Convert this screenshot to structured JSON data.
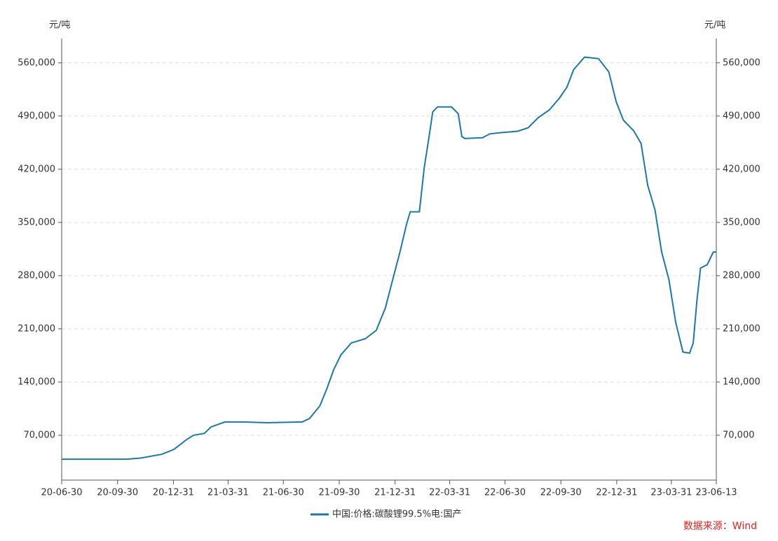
{
  "chart_data": {
    "type": "line",
    "y_unit_label": "元/吨",
    "y2_unit_label": "元/吨",
    "source": "数据来源：Wind",
    "x": [
      "20-06-30",
      "20-10-15",
      "20-11-07",
      "20-12-12",
      "21-01-01",
      "21-01-22",
      "21-02-02",
      "21-02-20",
      "21-03-03",
      "21-03-26",
      "21-04-24",
      "21-06-03",
      "21-07-31",
      "21-08-12",
      "21-08-29",
      "21-09-10",
      "21-09-21",
      "21-10-03",
      "21-10-20",
      "21-11-12",
      "21-11-30",
      "21-12-15",
      "21-12-27",
      "22-01-08",
      "22-01-19",
      "22-01-25",
      "22-02-09",
      "22-02-17",
      "22-02-25",
      "22-03-03",
      "22-03-11",
      "22-04-03",
      "22-04-14",
      "22-04-20",
      "22-04-25",
      "22-05-24",
      "22-06-05",
      "22-06-22",
      "22-07-21",
      "22-08-07",
      "22-08-24",
      "22-09-11",
      "22-09-28",
      "22-10-10",
      "22-10-21",
      "22-11-08",
      "22-12-01",
      "22-12-18",
      "22-12-30",
      "23-01-11",
      "23-01-28",
      "23-02-09",
      "23-02-20",
      "23-03-04",
      "23-03-15",
      "23-03-27",
      "23-04-07",
      "23-04-19",
      "23-04-30",
      "23-05-06",
      "23-05-12",
      "23-05-18",
      "23-05-29",
      "23-06-08",
      "23-06-13"
    ],
    "series": [
      {
        "name": "中国:价格:碳酸锂99.5%电:国产",
        "color": "#1f77a4",
        "values": [
          38500,
          38500,
          40000,
          45000,
          51500,
          64500,
          70000,
          72500,
          81000,
          87500,
          87500,
          86500,
          87500,
          92000,
          108500,
          132000,
          156500,
          176000,
          191500,
          197000,
          208000,
          237500,
          274500,
          311000,
          348000,
          364000,
          364000,
          422000,
          463000,
          495500,
          502000,
          502000,
          493000,
          463000,
          460500,
          461500,
          466500,
          468000,
          470000,
          474500,
          488000,
          498000,
          514000,
          528000,
          551000,
          567500,
          565500,
          548000,
          509000,
          484500,
          470500,
          454000,
          399000,
          366500,
          311000,
          274500,
          219000,
          179500,
          178000,
          191500,
          247000,
          290000,
          294500,
          311000,
          311000
        ]
      }
    ],
    "xlim": [
      "20-06-30",
      "23-06-13"
    ],
    "xticks": [
      "20-06-30",
      "20-09-30",
      "20-12-31",
      "21-03-31",
      "21-06-30",
      "21-09-30",
      "21-12-31",
      "22-03-31",
      "22-06-30",
      "22-09-30",
      "22-12-31",
      "23-03-31",
      "23-06-13"
    ],
    "ylim": [
      11000,
      592000
    ],
    "yticks": [
      {
        "value": 70000,
        "label": "70,000"
      },
      {
        "value": 140000,
        "label": "140,000"
      },
      {
        "value": 210000,
        "label": "210,000"
      },
      {
        "value": 280000,
        "label": "280,000"
      },
      {
        "value": 350000,
        "label": "350,000"
      },
      {
        "value": 420000,
        "label": "420,000"
      },
      {
        "value": 490000,
        "label": "490,000"
      },
      {
        "value": 560000,
        "label": "560,000"
      }
    ],
    "grid": true
  }
}
